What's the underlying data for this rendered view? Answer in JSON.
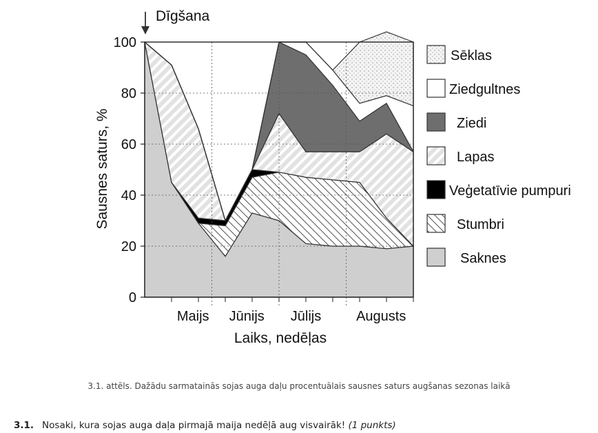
{
  "chart_data": {
    "type": "area",
    "stacked": true,
    "annotation": "Dīgšana",
    "xlabel": "Laiks, nedēļas",
    "ylabel": "Sausnes saturs, %",
    "ylim": [
      0,
      100
    ],
    "yticks": [
      0,
      20,
      40,
      60,
      80,
      100
    ],
    "x_months": [
      "Maijs",
      "Jūnijs",
      "Jūlijs",
      "Augusts"
    ],
    "grid": "dotted",
    "legend_position": "right",
    "x": [
      0,
      1,
      2,
      3,
      4,
      5,
      6,
      7,
      8,
      9,
      10
    ],
    "series": [
      {
        "name": "Saknes",
        "fill": "#cfcfcf",
        "pattern": "solid",
        "values": [
          100,
          45,
          29,
          16,
          33,
          30,
          21,
          20,
          20,
          19,
          20
        ]
      },
      {
        "name": "Stumbri",
        "fill": "#ffffff",
        "pattern": "hatch-back",
        "values": [
          0,
          0,
          0,
          12,
          14,
          19,
          26,
          26,
          25,
          12,
          0
        ]
      },
      {
        "name": "Veģetatīvie pumpuri",
        "fill": "#000000",
        "pattern": "solid",
        "values": [
          0,
          0,
          2,
          2,
          3,
          0,
          0,
          0,
          0,
          0,
          0
        ]
      },
      {
        "name": "Lapas",
        "fill": "#e2e2e2",
        "pattern": "hatch-forward",
        "values": [
          0,
          46,
          35,
          0,
          0,
          23,
          10,
          11,
          12,
          33,
          37
        ]
      },
      {
        "name": "Ziedi",
        "fill": "#6e6e6e",
        "pattern": "solid",
        "values": [
          0,
          0,
          0,
          0,
          0,
          28,
          38,
          26,
          12,
          12,
          0
        ]
      },
      {
        "name": "Ziedgultnes",
        "fill": "#ffffff",
        "pattern": "solid",
        "values": [
          0,
          0,
          0,
          0,
          0,
          0,
          5,
          6,
          7,
          3,
          18
        ]
      },
      {
        "name": "Sēklas",
        "fill": "#f2f2f2",
        "pattern": "dots",
        "values": [
          0,
          0,
          0,
          0,
          0,
          0,
          0,
          0,
          24,
          25,
          25
        ]
      }
    ]
  },
  "caption": "3.1. attēls. Dažādu sarmatainās sojas auga daļu procentuālais sausnes saturs augšanas sezonas laikā",
  "question": {
    "number": "3.1.",
    "text": "Nosaki, kura sojas auga daļa pirmajā maija nedēļā aug visvairāk!",
    "note": "(1 punkts)"
  }
}
